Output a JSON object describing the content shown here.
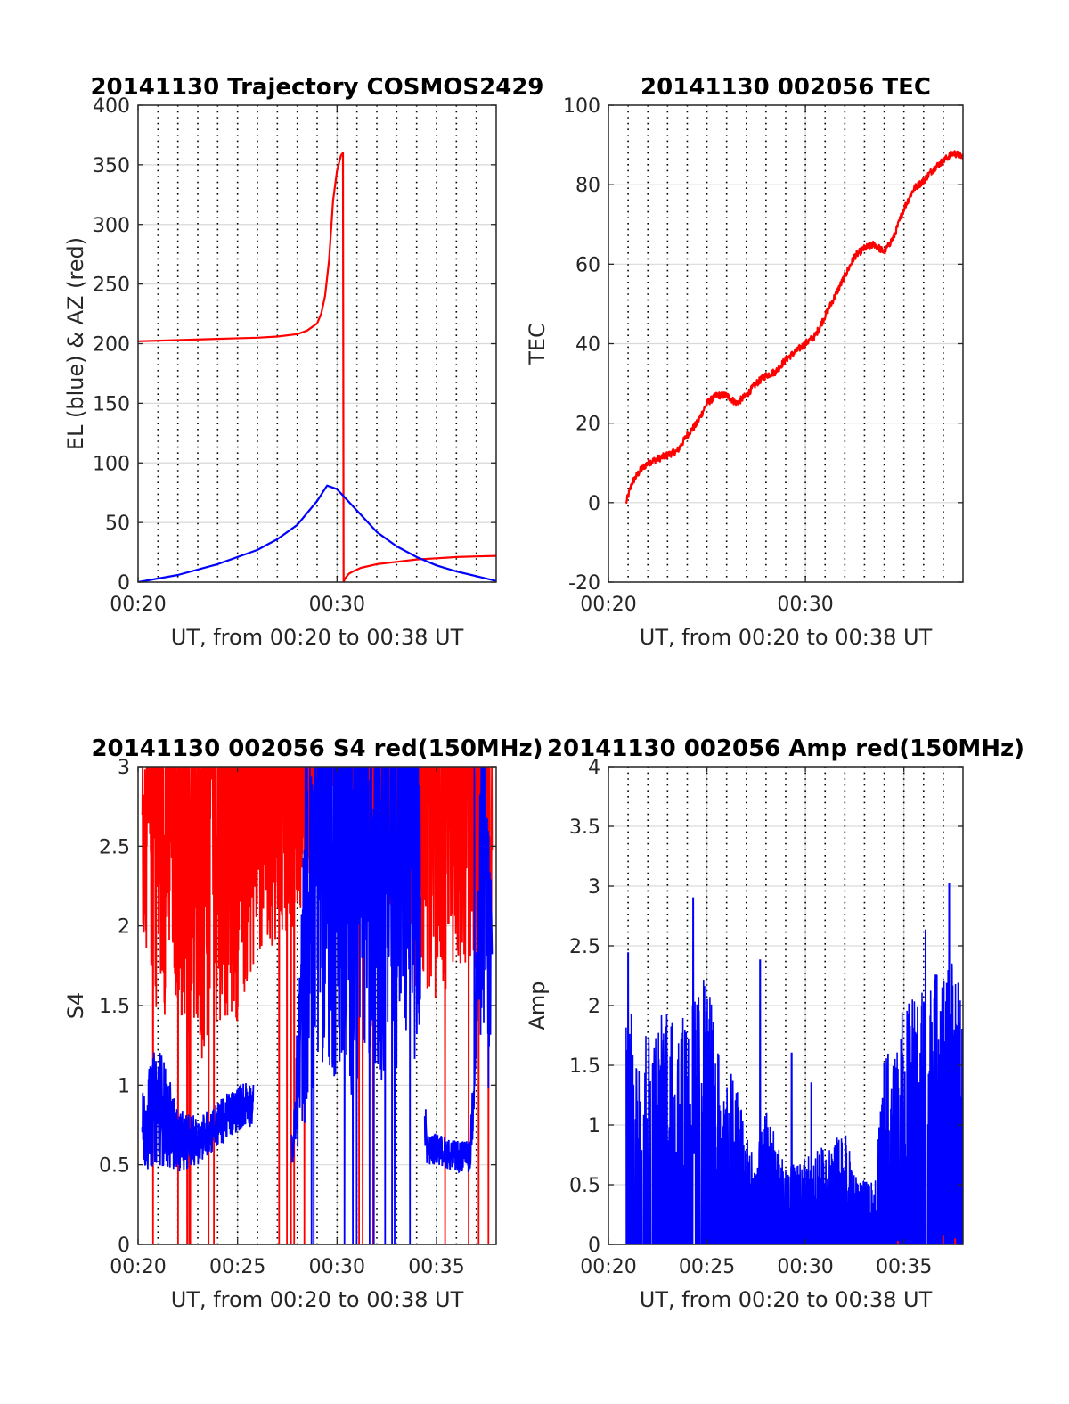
{
  "colors": {
    "red": "#ff0000",
    "blue": "#0000ff",
    "grid": "#d9d9d9",
    "vline": "#000000"
  },
  "chart_data": [
    {
      "type": "line",
      "title": "20141130 Trajectory COSMOS2429",
      "xlabel": "UT, from 00:20 to 00:38 UT",
      "ylabel": "EL (blue) & AZ (red)",
      "xlim": [
        0,
        18
      ],
      "ylim": [
        0,
        400
      ],
      "xticks": [
        0,
        10
      ],
      "xtick_labels": [
        "00:20",
        "00:30"
      ],
      "yticks": [
        0,
        50,
        100,
        150,
        200,
        250,
        300,
        350,
        400
      ],
      "ytick_labels": [
        "0",
        "50",
        "100",
        "150",
        "200",
        "250",
        "300",
        "350",
        "400"
      ],
      "grid": true,
      "minute_dotted_lines": true,
      "series": [
        {
          "color": "red",
          "style": "line",
          "x": [
            0.0,
            2.0,
            4.0,
            6.0,
            7.0,
            8.0,
            8.5,
            9.0,
            9.2,
            9.4,
            9.6,
            9.8,
            10.0,
            10.2,
            10.3,
            10.33,
            10.4,
            10.6,
            10.8,
            11.2,
            12.0,
            13.0,
            14.0,
            15.0,
            16.0,
            17.0,
            18.0
          ],
          "y": [
            202,
            203,
            204,
            205,
            206,
            208,
            211,
            217,
            225,
            240,
            270,
            320,
            345,
            358,
            360,
            0,
            3,
            7,
            9,
            12,
            15,
            17,
            19,
            20,
            21,
            21.5,
            22
          ]
        },
        {
          "color": "blue",
          "style": "line",
          "x": [
            0.0,
            2.0,
            4.0,
            6.0,
            7.0,
            8.0,
            9.0,
            9.5,
            10.0,
            11.0,
            12.0,
            13.0,
            14.0,
            15.0,
            16.0,
            17.0,
            18.0
          ],
          "y": [
            0,
            6,
            15,
            27,
            36,
            48,
            68,
            81,
            78,
            60,
            42,
            30,
            21,
            14,
            9,
            5,
            1
          ]
        }
      ]
    },
    {
      "type": "line",
      "title": "20141130 002056 TEC",
      "xlabel": "UT, from 00:20 to 00:38 UT",
      "ylabel": "TEC",
      "xlim": [
        0,
        18
      ],
      "ylim": [
        -20,
        100
      ],
      "xticks": [
        0,
        10
      ],
      "xtick_labels": [
        "00:20",
        "00:30"
      ],
      "yticks": [
        -20,
        0,
        20,
        40,
        60,
        80,
        100
      ],
      "ytick_labels": [
        "-20",
        "0",
        "20",
        "40",
        "60",
        "80",
        "100"
      ],
      "grid": true,
      "minute_dotted_lines": true,
      "series": [
        {
          "color": "red",
          "style": "line",
          "x": [
            0.9,
            1.2,
            1.6,
            2.0,
            2.5,
            3.0,
            3.5,
            4.0,
            4.5,
            5.0,
            5.5,
            6.0,
            6.5,
            7.0,
            7.5,
            8.0,
            8.5,
            9.0,
            9.5,
            10.0,
            10.5,
            11.0,
            11.5,
            12.0,
            12.5,
            13.0,
            13.5,
            14.0,
            14.5,
            15.0,
            15.5,
            16.0,
            16.5,
            17.0,
            17.5,
            18.0
          ],
          "y": [
            0,
            5,
            8,
            10,
            11,
            12,
            13,
            17,
            20,
            25,
            27,
            27,
            25,
            27,
            30,
            32,
            33,
            36,
            38,
            40,
            42,
            47,
            52,
            57,
            62,
            64,
            65,
            63,
            67,
            74,
            79,
            81,
            84,
            86,
            88,
            87
          ]
        }
      ]
    },
    {
      "type": "line",
      "title": "20141130 002056 S4 red(150MHz)",
      "xlabel": "UT, from 00:20 to 00:38 UT",
      "ylabel": "S4",
      "xlim": [
        0,
        18
      ],
      "ylim": [
        0,
        3
      ],
      "xticks": [
        0,
        5,
        10,
        15
      ],
      "xtick_labels": [
        "00:20",
        "00:25",
        "00:30",
        "00:35"
      ],
      "yticks": [
        0,
        0.5,
        1,
        1.5,
        2,
        2.5,
        3
      ],
      "ytick_labels": [
        "0",
        "0.5",
        "1",
        "1.5",
        "2",
        "2.5",
        "3"
      ],
      "grid": true,
      "minute_dotted_lines": true,
      "series": [
        {
          "color": "red",
          "style": "noisy",
          "x": [
            0.2,
            1.0,
            2.0,
            3.0,
            4.0,
            5.0,
            6.0,
            7.0,
            8.0,
            9.0,
            10.0,
            11.0,
            12.0,
            13.0,
            14.0,
            15.0,
            16.0,
            17.0,
            17.8
          ],
          "y": [
            2.6,
            2.7,
            2.8,
            2.6,
            2.9,
            2.8,
            3.0,
            2.9,
            3.0,
            3.0,
            3.0,
            3.0,
            3.0,
            2.9,
            2.8,
            2.9,
            2.9,
            2.9,
            2.8
          ],
          "spread": [
            0.6,
            1.3,
            1.3,
            1.5,
            1.5,
            1.4,
            1.2,
            1.0,
            1.0,
            0.5,
            0.6,
            0.8,
            0.5,
            1.0,
            1.2,
            1.5,
            1.2,
            1.2,
            1.0
          ]
        },
        {
          "color": "blue",
          "style": "noisy",
          "x": [
            0.2,
            1.0,
            2.0,
            3.0,
            4.0,
            5.0,
            5.5,
            7.8,
            8.5,
            9.0,
            10.0,
            11.0,
            12.0,
            13.0,
            14.0,
            14.5,
            15.0,
            16.0,
            16.7,
            17.3,
            17.8
          ],
          "y": [
            0.7,
            0.9,
            0.65,
            0.65,
            0.75,
            0.85,
            0.9,
            0.6,
            2.0,
            2.6,
            2.5,
            2.5,
            2.6,
            2.6,
            2.5,
            0.6,
            0.6,
            0.55,
            0.55,
            2.4,
            1.5
          ],
          "spread": [
            0.25,
            0.4,
            0.2,
            0.15,
            0.15,
            0.15,
            0.15,
            0.1,
            1.2,
            1.5,
            1.5,
            1.6,
            1.6,
            1.5,
            1.4,
            0.1,
            0.1,
            0.1,
            0.1,
            1.0,
            1.0
          ],
          "gaps": [
            [
              5.8,
              7.7
            ],
            [
              14.2,
              14.4
            ]
          ]
        }
      ]
    },
    {
      "type": "line",
      "title": "20141130 002056 Amp red(150MHz)",
      "xlabel": "UT, from 00:20 to 00:38 UT",
      "ylabel": "Amp",
      "xlim": [
        0,
        18
      ],
      "ylim": [
        0,
        4
      ],
      "xticks": [
        0,
        5,
        10,
        15
      ],
      "xtick_labels": [
        "00:20",
        "00:25",
        "00:30",
        "00:35"
      ],
      "yticks": [
        0,
        0.5,
        1,
        1.5,
        2,
        2.5,
        3,
        3.5,
        4
      ],
      "ytick_labels": [
        "0",
        "0.5",
        "1",
        "1.5",
        "2",
        "2.5",
        "3",
        "3.5",
        "4"
      ],
      "grid": true,
      "minute_dotted_lines": true,
      "series": [
        {
          "color": "blue",
          "style": "filled-noise",
          "x": [
            0.9,
            1.5,
            2.5,
            3.5,
            4.5,
            5.0,
            5.5,
            6.0,
            6.5,
            7.0,
            7.5,
            8.0,
            9.0,
            10.0,
            11.0,
            12.0,
            12.5,
            13.0,
            13.5,
            14.0,
            15.0,
            16.0,
            17.0,
            17.5,
            18.0
          ],
          "y": [
            1.9,
            1.8,
            1.9,
            1.8,
            2.0,
            2.2,
            1.6,
            1.5,
            1.3,
            0.9,
            0.7,
            1.1,
            0.6,
            0.7,
            0.8,
            0.9,
            0.6,
            0.5,
            0.5,
            1.5,
            1.9,
            2.1,
            2.2,
            2.3,
            1.9
          ],
          "peaks": [
            [
              1.0,
              2.44
            ],
            [
              4.3,
              2.9
            ],
            [
              7.7,
              2.38
            ],
            [
              9.3,
              1.6
            ],
            [
              10.3,
              1.35
            ],
            [
              16.1,
              2.63
            ],
            [
              17.3,
              3.02
            ]
          ]
        },
        {
          "color": "red",
          "style": "baseline-spikes",
          "x": [
            14.7,
            17.0,
            17.6
          ],
          "y": [
            0.03,
            0.08,
            0.05
          ]
        }
      ]
    }
  ]
}
